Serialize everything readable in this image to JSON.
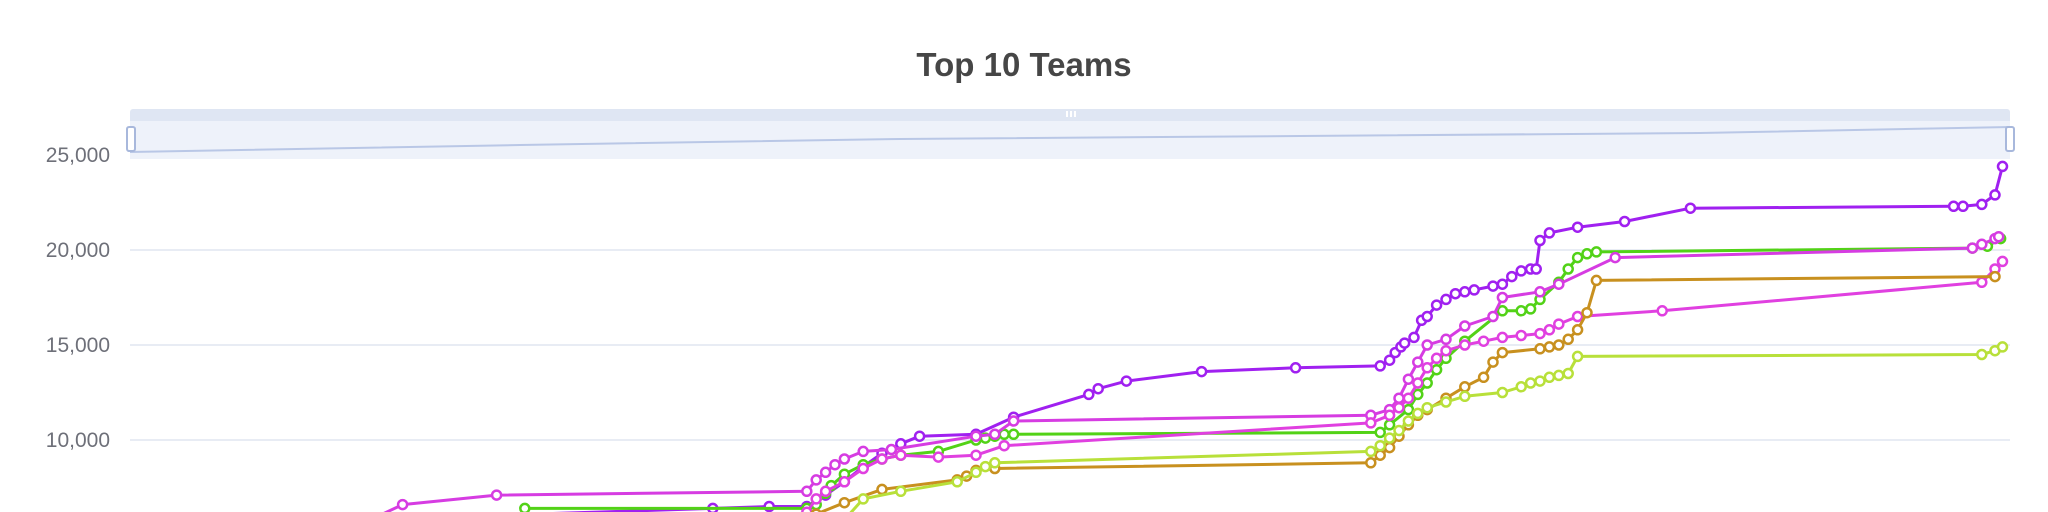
{
  "chart_data": {
    "type": "line",
    "title": "Top 10 Teams",
    "ylim": [
      6000,
      27000
    ],
    "xlim": [
      0,
      100
    ],
    "y_ticks": [
      {
        "value": 25000,
        "label": "25,000"
      },
      {
        "value": 20000,
        "label": "20,000"
      },
      {
        "value": 15000,
        "label": "15,000"
      },
      {
        "value": 10000,
        "label": 10000,
        "text": "10,000"
      }
    ],
    "grid": true,
    "legend": "none",
    "datazoom": {
      "start": 0,
      "end": 100
    },
    "series": [
      {
        "color": "#a020f0",
        "points": [
          [
            12,
            5800
          ],
          [
            31,
            6400
          ],
          [
            34,
            6500
          ],
          [
            36,
            6500
          ],
          [
            37,
            7100
          ],
          [
            38,
            7800
          ],
          [
            39,
            8600
          ],
          [
            40,
            9300
          ],
          [
            41,
            9800
          ],
          [
            42,
            10200
          ],
          [
            45,
            10300
          ],
          [
            47,
            11200
          ],
          [
            51,
            12400
          ],
          [
            51.5,
            12700
          ],
          [
            53,
            13100
          ],
          [
            57,
            13600
          ],
          [
            62,
            13800
          ],
          [
            66.5,
            13900
          ],
          [
            67,
            14200
          ],
          [
            67.3,
            14600
          ],
          [
            67.6,
            14900
          ],
          [
            67.8,
            15100
          ],
          [
            68.3,
            15400
          ],
          [
            68.7,
            16300
          ],
          [
            69,
            16500
          ],
          [
            69.5,
            17100
          ],
          [
            70,
            17400
          ],
          [
            70.5,
            17700
          ],
          [
            71,
            17800
          ],
          [
            71.5,
            17900
          ],
          [
            72.5,
            18100
          ],
          [
            73,
            18200
          ],
          [
            73.5,
            18600
          ],
          [
            74,
            18900
          ],
          [
            74.5,
            19000
          ],
          [
            74.8,
            19000
          ],
          [
            75,
            20500
          ],
          [
            75.5,
            20900
          ],
          [
            77,
            21200
          ],
          [
            79.5,
            21500
          ],
          [
            83,
            22200
          ],
          [
            97,
            22300
          ],
          [
            97.5,
            22300
          ],
          [
            98.5,
            22400
          ],
          [
            99.2,
            22900
          ],
          [
            99.6,
            24400
          ]
        ]
      },
      {
        "color": "#52d217",
        "points": [
          [
            21,
            6400
          ],
          [
            36,
            6400
          ],
          [
            36.5,
            6600
          ],
          [
            37,
            7200
          ],
          [
            37.3,
            7600
          ],
          [
            38,
            8200
          ],
          [
            39,
            8700
          ],
          [
            40,
            9000
          ],
          [
            41,
            9200
          ],
          [
            43,
            9400
          ],
          [
            45,
            10000
          ],
          [
            45.5,
            10100
          ],
          [
            46,
            10200
          ],
          [
            46.5,
            10300
          ],
          [
            47,
            10300
          ],
          [
            66.5,
            10400
          ],
          [
            67,
            10800
          ],
          [
            68,
            11600
          ],
          [
            68.5,
            12400
          ],
          [
            69,
            13000
          ],
          [
            69.5,
            13700
          ],
          [
            70,
            14300
          ],
          [
            71,
            15200
          ],
          [
            73,
            16800
          ],
          [
            74,
            16800
          ],
          [
            74.5,
            16900
          ],
          [
            75,
            17400
          ],
          [
            76,
            18300
          ],
          [
            76.5,
            19000
          ],
          [
            77,
            19600
          ],
          [
            77.5,
            19800
          ],
          [
            78,
            19900
          ],
          [
            98,
            20100
          ],
          [
            98.8,
            20200
          ],
          [
            99.5,
            20600
          ]
        ]
      },
      {
        "color": "#d63ce2",
        "points": [
          [
            13,
            5900
          ],
          [
            14.5,
            6600
          ],
          [
            19.5,
            7100
          ],
          [
            36,
            7300
          ],
          [
            36.5,
            7900
          ],
          [
            37,
            8300
          ],
          [
            37.5,
            8700
          ],
          [
            38,
            9000
          ],
          [
            39,
            9400
          ],
          [
            40.5,
            9500
          ],
          [
            45,
            10200
          ],
          [
            46,
            10300
          ],
          [
            47,
            11000
          ],
          [
            66,
            11300
          ],
          [
            67,
            11600
          ],
          [
            67.5,
            12200
          ],
          [
            68,
            13200
          ],
          [
            68.5,
            14100
          ],
          [
            69,
            15000
          ],
          [
            70,
            15300
          ],
          [
            71,
            16000
          ],
          [
            72.5,
            16500
          ],
          [
            73,
            17500
          ],
          [
            75,
            17800
          ],
          [
            76,
            18200
          ],
          [
            79,
            19600
          ],
          [
            98,
            20100
          ],
          [
            98.5,
            20300
          ],
          [
            99.2,
            20600
          ],
          [
            99.4,
            20700
          ]
        ]
      },
      {
        "color": "#e040e0",
        "points": [
          [
            36,
            6200
          ],
          [
            36.5,
            6900
          ],
          [
            37,
            7300
          ],
          [
            38,
            7800
          ],
          [
            39,
            8500
          ],
          [
            40,
            9000
          ],
          [
            41,
            9200
          ],
          [
            43,
            9100
          ],
          [
            45,
            9200
          ],
          [
            46.5,
            9700
          ],
          [
            66,
            10900
          ],
          [
            67,
            11300
          ],
          [
            67.5,
            11700
          ],
          [
            68,
            12200
          ],
          [
            68.5,
            13000
          ],
          [
            69,
            13800
          ],
          [
            69.5,
            14300
          ],
          [
            70,
            14700
          ],
          [
            71,
            15000
          ],
          [
            72,
            15200
          ],
          [
            73,
            15400
          ],
          [
            74,
            15500
          ],
          [
            75,
            15600
          ],
          [
            75.5,
            15800
          ],
          [
            76,
            16100
          ],
          [
            77,
            16500
          ],
          [
            81.5,
            16800
          ],
          [
            98.5,
            18300
          ],
          [
            99.2,
            19000
          ],
          [
            99.6,
            19400
          ]
        ]
      },
      {
        "color": "#c8901f",
        "points": [
          [
            36,
            5700
          ],
          [
            36.5,
            6100
          ],
          [
            38,
            6700
          ],
          [
            40,
            7400
          ],
          [
            44,
            7900
          ],
          [
            44.5,
            8100
          ],
          [
            45,
            8400
          ],
          [
            46,
            8500
          ],
          [
            66,
            8800
          ],
          [
            66.5,
            9200
          ],
          [
            67,
            9600
          ],
          [
            67.5,
            10200
          ],
          [
            68,
            10800
          ],
          [
            68.5,
            11300
          ],
          [
            69,
            11600
          ],
          [
            70,
            12200
          ],
          [
            71,
            12800
          ],
          [
            72,
            13300
          ],
          [
            72.5,
            14100
          ],
          [
            73,
            14600
          ],
          [
            75,
            14800
          ],
          [
            75.5,
            14900
          ],
          [
            76,
            15000
          ],
          [
            76.5,
            15300
          ],
          [
            77,
            15800
          ],
          [
            77.5,
            16700
          ],
          [
            78,
            18400
          ],
          [
            99.2,
            18600
          ]
        ]
      },
      {
        "color": "#b8e03a",
        "points": [
          [
            38,
            5800
          ],
          [
            39,
            6900
          ],
          [
            41,
            7300
          ],
          [
            44,
            7800
          ],
          [
            45,
            8300
          ],
          [
            45.5,
            8600
          ],
          [
            46,
            8800
          ],
          [
            66,
            9400
          ],
          [
            66.5,
            9700
          ],
          [
            67,
            10100
          ],
          [
            67.5,
            10500
          ],
          [
            68,
            11000
          ],
          [
            68.5,
            11400
          ],
          [
            69,
            11700
          ],
          [
            70,
            12000
          ],
          [
            71,
            12300
          ],
          [
            73,
            12500
          ],
          [
            74,
            12800
          ],
          [
            74.5,
            13000
          ],
          [
            75,
            13100
          ],
          [
            75.5,
            13300
          ],
          [
            76,
            13400
          ],
          [
            76.5,
            13500
          ],
          [
            77,
            14400
          ],
          [
            98.5,
            14500
          ],
          [
            99.2,
            14700
          ],
          [
            99.6,
            14900
          ]
        ]
      }
    ]
  }
}
